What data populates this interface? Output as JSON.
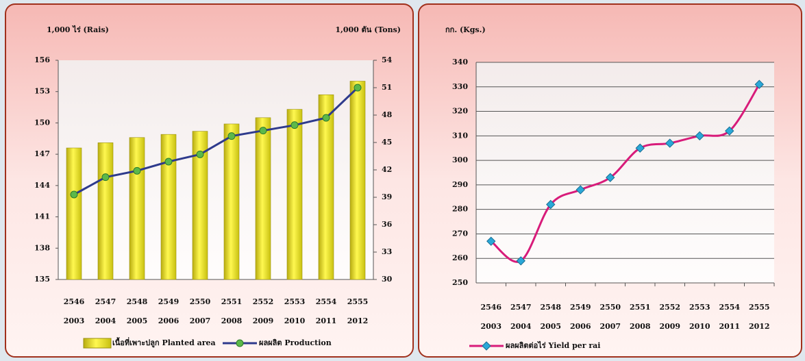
{
  "chart_data": [
    {
      "type": "combo",
      "y_label": "1,000 ไร่ (Rais)",
      "y2_label": "1,000 ตัน (Tons)",
      "categories": [
        "2546",
        "2547",
        "2548",
        "2549",
        "2550",
        "2551",
        "2552",
        "2553",
        "2554",
        "2555"
      ],
      "categories2": [
        "2003",
        "2004",
        "2005",
        "2006",
        "2007",
        "2008",
        "2009",
        "2010",
        "2011",
        "2012"
      ],
      "ylim": [
        135,
        156
      ],
      "yticks": [
        135,
        138,
        141,
        144,
        147,
        150,
        153,
        156
      ],
      "y2lim": [
        30,
        54
      ],
      "y2ticks": [
        30,
        33,
        36,
        39,
        42,
        45,
        48,
        51,
        54
      ],
      "grid": false,
      "series": [
        {
          "name": "เนื้อที่เพาะปลูก Planted area",
          "color": "#e8e020",
          "kind": "bar",
          "values": [
            147.6,
            148.1,
            148.6,
            148.9,
            149.2,
            149.9,
            150.5,
            151.3,
            152.7,
            154.0
          ]
        },
        {
          "name": "ผลผลิต Production",
          "color": "#2e3a8c",
          "marker_color": "#5cb84a",
          "kind": "line",
          "axis": "y2",
          "values": [
            39.3,
            41.2,
            41.9,
            42.9,
            43.7,
            45.7,
            46.3,
            46.9,
            47.7,
            51.0
          ]
        }
      ]
    },
    {
      "type": "line",
      "y_label": "กก. (Kgs.)",
      "categories": [
        "2546",
        "2547",
        "2548",
        "2549",
        "2550",
        "2551",
        "2552",
        "2553",
        "2554",
        "2555"
      ],
      "categories2": [
        "2003",
        "2004",
        "2005",
        "2006",
        "2007",
        "2008",
        "2009",
        "2010",
        "2011",
        "2012"
      ],
      "ylim": [
        250,
        340
      ],
      "yticks": [
        250,
        260,
        270,
        280,
        290,
        300,
        310,
        320,
        330,
        340
      ],
      "grid": true,
      "series": [
        {
          "name": "ผลผลิตต่อไร่  Yield per rai",
          "color": "#d81b7a",
          "marker_color": "#2aa8d8",
          "kind": "line",
          "values": [
            267,
            259,
            282,
            288,
            293,
            305,
            307,
            310,
            312,
            331
          ]
        }
      ]
    }
  ]
}
